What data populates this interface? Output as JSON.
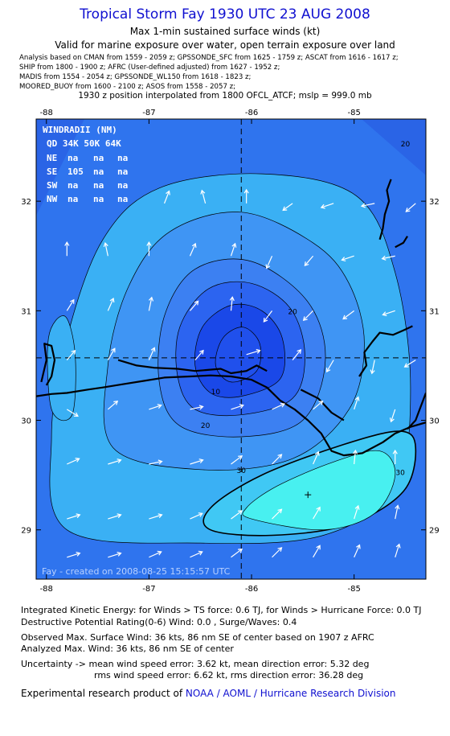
{
  "header": {
    "title": "Tropical Storm Fay 1930 UTC 23 AUG 2008",
    "subtitle1": "Max 1-min sustained surface winds (kt)",
    "subtitle2": "Valid for marine exposure over water, open terrain exposure over land",
    "sources": [
      "Analysis based on  CMAN from 1559 - 2059 z;  GPSSONDE_SFC from 1625 - 1759 z;  ASCAT from 1616 - 1617 z;",
      "SHIP from 1800 - 1900 z;  AFRC (User-defined adjusted) from 1627 - 1952 z;",
      "MADIS from 1554 - 2054 z;  GPSSONDE_WL150 from 1618 - 1823 z;",
      "MOORED_BUOY from 1600 - 2100 z;  ASOS from 1558 - 2057 z;"
    ],
    "position_note": "1930 z position interpolated from 1800 OFCL_ATCF; mslp = 999.0 mb"
  },
  "inset": {
    "title": "WINDRADII (NM)",
    "header": "QD 34K 50K 64K",
    "rows": [
      {
        "quad": "NE",
        "r34": "na",
        "r50": "na",
        "r64": "na"
      },
      {
        "quad": "SE",
        "r34": "105",
        "r50": "na",
        "r64": "na"
      },
      {
        "quad": "SW",
        "r34": "na",
        "r50": "na",
        "r64": "na"
      },
      {
        "quad": "NW",
        "r34": "na",
        "r50": "na",
        "r64": "na"
      }
    ],
    "credit": "Fay - created on 2008-08-25 15:15:57 UTC"
  },
  "footer": {
    "ike": "Integrated Kinetic Energy:  for Winds > TS force: 0.6 TJ,  for Winds > Hurricane Force: 0.0 TJ",
    "dpr": "Destructive Potential Rating(0-6)   Wind: 0.0 , Surge/Waves: 0.4",
    "observed": "Observed Max. Surface Wind: 36 kts, 86 nm SE of center based on 1907 z AFRC",
    "analyzed": "Analyzed Max. Wind: 36 kts, 86 nm SE of center",
    "uncert1": "Uncertainty -> mean wind speed error: 3.62 kt,   mean direction error: 5.32 deg",
    "uncert2": "rms wind speed error: 6.62 kt,   rms direction error: 36.28 deg",
    "credit_prefix": "Experimental research product of ",
    "credit_org": "NOAA / AOML / Hurricane Research Division"
  },
  "chart_data": {
    "type": "contour",
    "xlim": [
      -88.1,
      -84.3
    ],
    "ylim": [
      28.55,
      32.75
    ],
    "xticks": [
      -88,
      -87,
      -86,
      -85
    ],
    "xtick_labels": [
      "-88",
      "-87",
      "-86",
      "-85"
    ],
    "yticks": [
      29,
      30,
      31,
      32
    ],
    "ytick_labels": [
      "29",
      "30",
      "31",
      "32"
    ],
    "storm_center": {
      "lon": -86.1,
      "lat": 30.57
    },
    "max_wind_location": {
      "lon": -85.45,
      "lat": 29.32
    },
    "contours": [
      {
        "level": 5,
        "color": "#2050ec",
        "points": [
          [
            -86.2,
            30.35
          ],
          [
            -85.95,
            30.45
          ],
          [
            -85.92,
            30.7
          ],
          [
            -86.08,
            30.85
          ],
          [
            -86.28,
            30.75
          ],
          [
            -86.35,
            30.5
          ]
        ]
      },
      {
        "level": 10,
        "color": "#1a48e8",
        "points": [
          [
            -86.4,
            30.25
          ],
          [
            -86.1,
            30.22
          ],
          [
            -85.72,
            30.38
          ],
          [
            -85.7,
            30.75
          ],
          [
            -85.9,
            31.0
          ],
          [
            -86.2,
            31.05
          ],
          [
            -86.48,
            30.85
          ],
          [
            -86.55,
            30.5
          ]
        ]
      },
      {
        "level": 15,
        "color": "#2c64f0",
        "points": [
          [
            -86.55,
            30.1
          ],
          [
            -86.1,
            30.05
          ],
          [
            -85.6,
            30.2
          ],
          [
            -85.48,
            30.6
          ],
          [
            -85.62,
            31.02
          ],
          [
            -86.0,
            31.25
          ],
          [
            -86.42,
            31.2
          ],
          [
            -86.7,
            30.85
          ],
          [
            -86.72,
            30.4
          ]
        ]
      },
      {
        "level": 20,
        "color": "#3c80f2",
        "points": [
          [
            -86.7,
            29.95
          ],
          [
            -86.1,
            29.85
          ],
          [
            -85.5,
            30.0
          ],
          [
            -85.28,
            30.55
          ],
          [
            -85.45,
            31.08
          ],
          [
            -86.0,
            31.45
          ],
          [
            -86.55,
            31.38
          ],
          [
            -86.85,
            30.95
          ],
          [
            -86.9,
            30.35
          ]
        ]
      },
      {
        "level": 25,
        "color": "#3f95f4",
        "points": [
          [
            -87.35,
            29.75
          ],
          [
            -86.5,
            29.55
          ],
          [
            -85.6,
            29.65
          ],
          [
            -85.05,
            30.1
          ],
          [
            -84.9,
            30.7
          ],
          [
            -85.05,
            31.25
          ],
          [
            -85.4,
            31.62
          ],
          [
            -86.1,
            31.9
          ],
          [
            -86.8,
            31.72
          ],
          [
            -87.2,
            31.22
          ],
          [
            -87.4,
            30.5
          ]
        ]
      },
      {
        "level": 30,
        "color": "#3ab0f4",
        "points": [
          [
            -87.8,
            29.0
          ],
          [
            -86.5,
            28.88
          ],
          [
            -85.3,
            28.95
          ],
          [
            -84.6,
            29.4
          ],
          [
            -84.45,
            30.3
          ],
          [
            -84.6,
            31.35
          ],
          [
            -84.98,
            32.05
          ],
          [
            -85.9,
            32.25
          ],
          [
            -86.9,
            32.12
          ],
          [
            -87.45,
            31.65
          ],
          [
            -87.8,
            30.75
          ],
          [
            -87.95,
            29.85
          ]
        ]
      },
      {
        "level": 30,
        "color": "#40c8f4",
        "points": [
          [
            -86.4,
            29.0
          ],
          [
            -85.8,
            28.95
          ],
          [
            -85.05,
            29.05
          ],
          [
            -84.52,
            29.35
          ],
          [
            -84.4,
            29.75
          ],
          [
            -84.55,
            29.9
          ],
          [
            -85.1,
            29.78
          ],
          [
            -85.9,
            29.5
          ],
          [
            -86.4,
            29.2
          ]
        ]
      },
      {
        "level": 35,
        "color": "#48f0f0",
        "points": [
          [
            -86.0,
            29.1
          ],
          [
            -85.3,
            29.0
          ],
          [
            -84.8,
            29.15
          ],
          [
            -84.6,
            29.5
          ],
          [
            -84.75,
            29.72
          ],
          [
            -85.2,
            29.62
          ],
          [
            -85.75,
            29.4
          ],
          [
            -86.05,
            29.2
          ]
        ]
      },
      {
        "level": 30,
        "color": "#3ab0f4",
        "points": [
          [
            -87.95,
            30.1
          ],
          [
            -87.75,
            30.05
          ],
          [
            -87.72,
            30.6
          ],
          [
            -87.82,
            30.95
          ],
          [
            -87.98,
            30.75
          ]
        ]
      }
    ],
    "contour_labels": [
      {
        "text": "20",
        "lon": -85.6,
        "lat": 30.97
      },
      {
        "text": "10",
        "lon": -86.35,
        "lat": 30.24
      },
      {
        "text": "20",
        "lon": -86.45,
        "lat": 29.93
      },
      {
        "text": "30",
        "lon": -86.1,
        "lat": 29.52
      },
      {
        "text": "30",
        "lon": -84.55,
        "lat": 29.5
      },
      {
        "text": "20",
        "lon": -84.5,
        "lat": 32.5
      }
    ],
    "wind_vectors": [
      {
        "lon": -86.85,
        "lat": 31.98,
        "u": 0.35,
        "v": 0.9
      },
      {
        "lon": -86.45,
        "lat": 31.98,
        "u": -0.25,
        "v": 0.95
      },
      {
        "lon": -86.05,
        "lat": 31.98,
        "u": 0.0,
        "v": 1.0
      },
      {
        "lon": -85.6,
        "lat": 31.98,
        "u": -0.7,
        "v": -0.5
      },
      {
        "lon": -85.2,
        "lat": 31.98,
        "u": -0.9,
        "v": -0.3
      },
      {
        "lon": -84.8,
        "lat": 31.98,
        "u": -0.95,
        "v": -0.2
      },
      {
        "lon": -84.4,
        "lat": 31.98,
        "u": -0.7,
        "v": -0.6
      },
      {
        "lon": -87.8,
        "lat": 31.5,
        "u": 0.0,
        "v": 1.0
      },
      {
        "lon": -87.4,
        "lat": 31.5,
        "u": -0.2,
        "v": 0.95
      },
      {
        "lon": -87.0,
        "lat": 31.5,
        "u": 0.0,
        "v": 1.0
      },
      {
        "lon": -86.6,
        "lat": 31.5,
        "u": 0.4,
        "v": 0.9
      },
      {
        "lon": -86.2,
        "lat": 31.5,
        "u": 0.3,
        "v": 0.9
      },
      {
        "lon": -85.8,
        "lat": 31.5,
        "u": -0.4,
        "v": -0.9
      },
      {
        "lon": -85.4,
        "lat": 31.5,
        "u": -0.6,
        "v": -0.7
      },
      {
        "lon": -85.0,
        "lat": 31.5,
        "u": -0.9,
        "v": -0.3
      },
      {
        "lon": -84.6,
        "lat": 31.5,
        "u": -0.95,
        "v": -0.2
      },
      {
        "lon": -87.8,
        "lat": 31.0,
        "u": 0.5,
        "v": 0.8
      },
      {
        "lon": -87.4,
        "lat": 31.0,
        "u": 0.4,
        "v": 0.9
      },
      {
        "lon": -87.0,
        "lat": 31.0,
        "u": 0.2,
        "v": 0.98
      },
      {
        "lon": -86.6,
        "lat": 31.0,
        "u": 0.6,
        "v": 0.7
      },
      {
        "lon": -86.2,
        "lat": 31.0,
        "u": 0.1,
        "v": 1.0
      },
      {
        "lon": -85.8,
        "lat": 31.0,
        "u": -0.6,
        "v": -0.8
      },
      {
        "lon": -85.4,
        "lat": 31.0,
        "u": -0.7,
        "v": -0.7
      },
      {
        "lon": -85.0,
        "lat": 31.0,
        "u": -0.8,
        "v": -0.6
      },
      {
        "lon": -84.6,
        "lat": 31.0,
        "u": -0.9,
        "v": -0.3
      },
      {
        "lon": -87.8,
        "lat": 30.55,
        "u": 0.6,
        "v": 0.7
      },
      {
        "lon": -87.4,
        "lat": 30.55,
        "u": 0.5,
        "v": 0.85
      },
      {
        "lon": -87.0,
        "lat": 30.55,
        "u": 0.4,
        "v": 0.9
      },
      {
        "lon": -86.55,
        "lat": 30.55,
        "u": 0.6,
        "v": 0.7
      },
      {
        "lon": -86.05,
        "lat": 30.6,
        "u": 1.0,
        "v": 0.3
      },
      {
        "lon": -85.6,
        "lat": 30.55,
        "u": 0.6,
        "v": 0.75
      },
      {
        "lon": -85.2,
        "lat": 30.55,
        "u": -0.5,
        "v": -0.85
      },
      {
        "lon": -84.8,
        "lat": 30.55,
        "u": -0.2,
        "v": -0.98
      },
      {
        "lon": -84.4,
        "lat": 30.55,
        "u": -0.8,
        "v": -0.5
      },
      {
        "lon": -87.8,
        "lat": 30.1,
        "u": 0.8,
        "v": -0.5
      },
      {
        "lon": -87.4,
        "lat": 30.1,
        "u": 0.7,
        "v": 0.6
      },
      {
        "lon": -87.0,
        "lat": 30.1,
        "u": 0.9,
        "v": 0.3
      },
      {
        "lon": -86.6,
        "lat": 30.1,
        "u": 0.95,
        "v": 0.2
      },
      {
        "lon": -86.2,
        "lat": 30.1,
        "u": 0.9,
        "v": 0.3
      },
      {
        "lon": -85.8,
        "lat": 30.1,
        "u": 0.9,
        "v": 0.4
      },
      {
        "lon": -85.4,
        "lat": 30.1,
        "u": 0.7,
        "v": 0.6
      },
      {
        "lon": -85.0,
        "lat": 30.1,
        "u": 0.3,
        "v": 0.9
      },
      {
        "lon": -84.6,
        "lat": 30.1,
        "u": -0.3,
        "v": -0.9
      },
      {
        "lon": -87.8,
        "lat": 29.6,
        "u": 0.9,
        "v": 0.4
      },
      {
        "lon": -87.4,
        "lat": 29.6,
        "u": 0.95,
        "v": 0.3
      },
      {
        "lon": -87.0,
        "lat": 29.6,
        "u": 0.95,
        "v": 0.2
      },
      {
        "lon": -86.6,
        "lat": 29.6,
        "u": 0.95,
        "v": 0.3
      },
      {
        "lon": -86.2,
        "lat": 29.6,
        "u": 0.8,
        "v": 0.6
      },
      {
        "lon": -85.8,
        "lat": 29.6,
        "u": 0.7,
        "v": 0.7
      },
      {
        "lon": -85.4,
        "lat": 29.6,
        "u": 0.4,
        "v": 0.9
      },
      {
        "lon": -85.0,
        "lat": 29.6,
        "u": 0.1,
        "v": 1.0
      },
      {
        "lon": -84.6,
        "lat": 29.6,
        "u": 0.0,
        "v": 1.0
      },
      {
        "lon": -87.8,
        "lat": 29.1,
        "u": 0.95,
        "v": 0.3
      },
      {
        "lon": -87.4,
        "lat": 29.1,
        "u": 0.95,
        "v": 0.3
      },
      {
        "lon": -87.0,
        "lat": 29.1,
        "u": 0.95,
        "v": 0.3
      },
      {
        "lon": -86.6,
        "lat": 29.1,
        "u": 0.9,
        "v": 0.4
      },
      {
        "lon": -86.2,
        "lat": 29.1,
        "u": 0.8,
        "v": 0.6
      },
      {
        "lon": -85.8,
        "lat": 29.1,
        "u": 0.7,
        "v": 0.7
      },
      {
        "lon": -85.4,
        "lat": 29.1,
        "u": 0.5,
        "v": 0.85
      },
      {
        "lon": -85.0,
        "lat": 29.1,
        "u": 0.3,
        "v": 0.95
      },
      {
        "lon": -84.6,
        "lat": 29.1,
        "u": 0.2,
        "v": 0.98
      },
      {
        "lon": -87.8,
        "lat": 28.75,
        "u": 0.95,
        "v": 0.3
      },
      {
        "lon": -87.4,
        "lat": 28.75,
        "u": 0.95,
        "v": 0.3
      },
      {
        "lon": -87.0,
        "lat": 28.75,
        "u": 0.9,
        "v": 0.4
      },
      {
        "lon": -86.6,
        "lat": 28.75,
        "u": 0.9,
        "v": 0.4
      },
      {
        "lon": -86.2,
        "lat": 28.75,
        "u": 0.8,
        "v": 0.6
      },
      {
        "lon": -85.8,
        "lat": 28.75,
        "u": 0.7,
        "v": 0.7
      },
      {
        "lon": -85.4,
        "lat": 28.75,
        "u": 0.5,
        "v": 0.85
      },
      {
        "lon": -85.0,
        "lat": 28.75,
        "u": 0.4,
        "v": 0.9
      },
      {
        "lon": -84.6,
        "lat": 28.75,
        "u": 0.3,
        "v": 0.95
      }
    ],
    "coastline": [
      [
        [
          -88.1,
          30.22
        ],
        [
          -87.95,
          30.24
        ],
        [
          -87.8,
          30.25
        ],
        [
          -87.6,
          30.28
        ],
        [
          -87.45,
          30.3
        ],
        [
          -87.25,
          30.33
        ],
        [
          -87.05,
          30.36
        ],
        [
          -86.85,
          30.39
        ],
        [
          -86.6,
          30.4
        ],
        [
          -86.4,
          30.41
        ],
        [
          -86.2,
          30.4
        ],
        [
          -86.0,
          30.37
        ],
        [
          -85.85,
          30.3
        ],
        [
          -85.72,
          30.18
        ],
        [
          -85.58,
          30.1
        ],
        [
          -85.45,
          30.0
        ],
        [
          -85.32,
          29.88
        ],
        [
          -85.22,
          29.72
        ],
        [
          -85.1,
          29.68
        ],
        [
          -84.92,
          29.7
        ],
        [
          -84.72,
          29.8
        ],
        [
          -84.6,
          29.88
        ],
        [
          -84.45,
          29.94
        ],
        [
          -84.3,
          29.98
        ]
      ],
      [
        [
          -88.05,
          30.35
        ],
        [
          -88.0,
          30.55
        ],
        [
          -88.02,
          30.7
        ],
        [
          -87.95,
          30.68
        ],
        [
          -87.92,
          30.55
        ],
        [
          -87.95,
          30.4
        ],
        [
          -88.0,
          30.32
        ]
      ],
      [
        [
          -87.3,
          30.55
        ],
        [
          -87.12,
          30.5
        ],
        [
          -86.95,
          30.48
        ],
        [
          -86.72,
          30.47
        ],
        [
          -86.55,
          30.45
        ],
        [
          -86.3,
          30.47
        ],
        [
          -86.2,
          30.43
        ],
        [
          -86.05,
          30.45
        ],
        [
          -85.95,
          30.5
        ],
        [
          -85.85,
          30.45
        ]
      ],
      [
        [
          -85.52,
          30.28
        ],
        [
          -85.35,
          30.2
        ],
        [
          -85.22,
          30.07
        ],
        [
          -85.1,
          30.0
        ]
      ],
      [
        [
          -84.95,
          30.4
        ],
        [
          -84.88,
          30.5
        ],
        [
          -84.9,
          30.62
        ],
        [
          -84.82,
          30.72
        ],
        [
          -84.75,
          30.8
        ],
        [
          -84.62,
          30.78
        ],
        [
          -84.52,
          30.82
        ],
        [
          -84.43,
          30.86
        ]
      ],
      [
        [
          -84.48,
          29.92
        ],
        [
          -84.4,
          30.0
        ],
        [
          -84.36,
          30.1
        ],
        [
          -84.3,
          30.25
        ]
      ],
      [
        [
          -84.75,
          31.65
        ],
        [
          -84.72,
          31.75
        ],
        [
          -84.7,
          31.88
        ],
        [
          -84.66,
          32.0
        ],
        [
          -84.68,
          32.1
        ],
        [
          -84.64,
          32.2
        ]
      ],
      [
        [
          -84.6,
          31.58
        ],
        [
          -84.52,
          31.62
        ],
        [
          -84.48,
          31.68
        ]
      ]
    ]
  }
}
